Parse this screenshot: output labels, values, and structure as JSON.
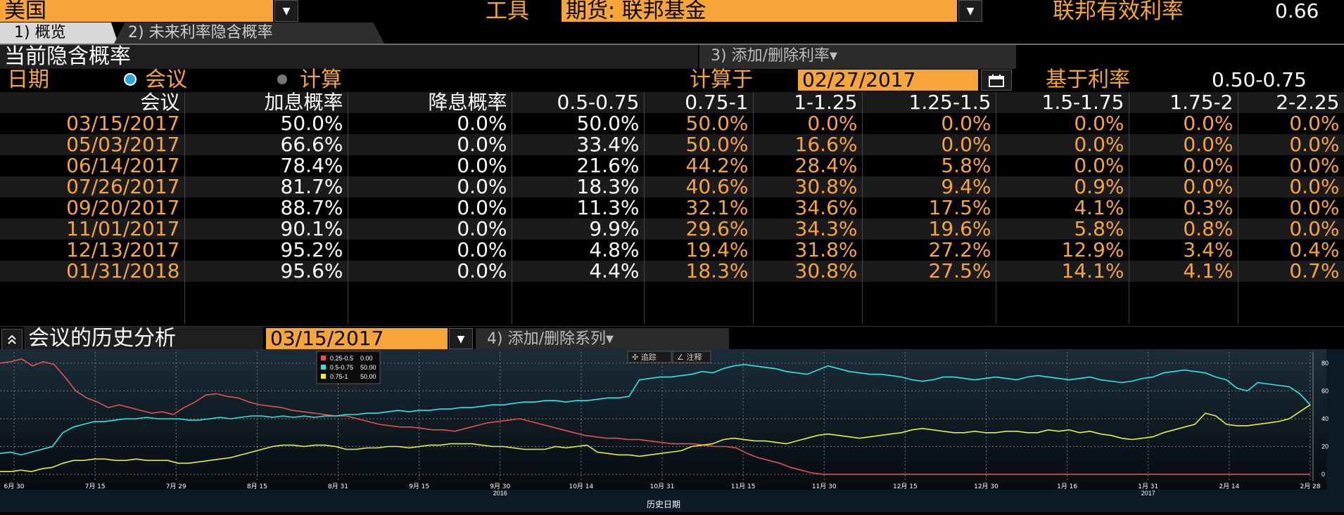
{
  "header": {
    "country_value": "美国",
    "tool_label": "工具",
    "tool_value": "期货: 联邦基金",
    "effective_rate_label": "联邦有效利率",
    "effective_rate_value": "0.66",
    "dropdown_glyph": "▼"
  },
  "tabs": [
    {
      "label": "1) 概览",
      "active": true
    },
    {
      "label": "2) 未来利率隐含概率",
      "active": false
    }
  ],
  "section": {
    "title": "当前隐含概率",
    "add_remove_rate": "3) 添加/删除利率▾",
    "date_label": "日期",
    "option_meeting": "会议",
    "option_calc": "计算",
    "calc_on_label": "计算于",
    "calc_date": "02/27/2017",
    "base_rate_label": "基于利率",
    "base_rate_value": "0.50-0.75"
  },
  "table": {
    "headers": [
      "会议",
      "加息概率",
      "降息概率",
      "0.5-0.75",
      "0.75-1",
      "1-1.25",
      "1.25-1.5",
      "1.5-1.75",
      "1.75-2",
      "2-2.25"
    ],
    "rows": [
      [
        "03/15/2017",
        "50.0%",
        "0.0%",
        "50.0%",
        "50.0%",
        "0.0%",
        "0.0%",
        "0.0%",
        "0.0%",
        "0.0%"
      ],
      [
        "05/03/2017",
        "66.6%",
        "0.0%",
        "33.4%",
        "50.0%",
        "16.6%",
        "0.0%",
        "0.0%",
        "0.0%",
        "0.0%"
      ],
      [
        "06/14/2017",
        "78.4%",
        "0.0%",
        "21.6%",
        "44.2%",
        "28.4%",
        "5.8%",
        "0.0%",
        "0.0%",
        "0.0%"
      ],
      [
        "07/26/2017",
        "81.7%",
        "0.0%",
        "18.3%",
        "40.6%",
        "30.8%",
        "9.4%",
        "0.9%",
        "0.0%",
        "0.0%"
      ],
      [
        "09/20/2017",
        "88.7%",
        "0.0%",
        "11.3%",
        "32.1%",
        "34.6%",
        "17.5%",
        "4.1%",
        "0.3%",
        "0.0%"
      ],
      [
        "11/01/2017",
        "90.1%",
        "0.0%",
        "9.9%",
        "29.6%",
        "34.3%",
        "19.6%",
        "5.8%",
        "0.8%",
        "0.0%"
      ],
      [
        "12/13/2017",
        "95.2%",
        "0.0%",
        "4.8%",
        "19.4%",
        "31.8%",
        "27.2%",
        "12.9%",
        "3.4%",
        "0.4%"
      ],
      [
        "01/31/2018",
        "95.6%",
        "0.0%",
        "4.4%",
        "18.3%",
        "30.8%",
        "27.5%",
        "14.1%",
        "4.1%",
        "0.7%"
      ]
    ]
  },
  "history": {
    "collapse_glyph": "≈",
    "title": "会议的历史分析",
    "meeting_date": "03/15/2017",
    "add_remove_series": "4) 添加/删除系列▾",
    "track_btn": "✣ 追踪",
    "note_btn": "∠ 注释",
    "xlabel": "历史日期"
  },
  "chart_data": {
    "type": "line",
    "xlabel": "历史日期",
    "x_ticks": [
      "6月 30",
      "7月 15",
      "7月 29",
      "8月 15",
      "8月 31",
      "9月 15",
      "9月 30",
      "10月 14",
      "10月 31",
      "11月 15",
      "11月 30",
      "12月 15",
      "12月 30",
      "1月 16",
      "1月 31",
      "2月 14",
      "2月 28"
    ],
    "year_labels": [
      {
        "after_tick": "9月 30",
        "text": "2016"
      },
      {
        "after_tick": "1月 31",
        "text": "2017"
      }
    ],
    "y_ticks": [
      0,
      20,
      40,
      60,
      80
    ],
    "ylim": [
      -5,
      88
    ],
    "legend": [
      {
        "name": "0.25-0.5",
        "value": "0.00",
        "color": "#e05252"
      },
      {
        "name": "0.5-0.75",
        "value": "50.00",
        "color": "#2fe6e6"
      },
      {
        "name": "0.75-1",
        "value": "50.00",
        "color": "#e6f03a"
      }
    ],
    "series": [
      {
        "name": "0.25-0.5",
        "color": "#e05252",
        "values": [
          80,
          81,
          83,
          78,
          81,
          79,
          70,
          60,
          55,
          52,
          48,
          50,
          48,
          46,
          44,
          45,
          43,
          48,
          52,
          57,
          58,
          56,
          55,
          52,
          50,
          49,
          48,
          46,
          45,
          44,
          43,
          42,
          42,
          40,
          38,
          36,
          35,
          34,
          34,
          33,
          32,
          32,
          31,
          33,
          35,
          37,
          38,
          39,
          40,
          38,
          36,
          34,
          32,
          30,
          28,
          27,
          26,
          26,
          25,
          25,
          24,
          23,
          22,
          22,
          22,
          21,
          20,
          20,
          19,
          15,
          12,
          10,
          8,
          5,
          3,
          1,
          0,
          0,
          0,
          0,
          0,
          0,
          0,
          0,
          0,
          0,
          0,
          0,
          0,
          0,
          0,
          0,
          0,
          0,
          0,
          0,
          0,
          0,
          0,
          0,
          0,
          0,
          0,
          0,
          0,
          0,
          0,
          0,
          0,
          0,
          0,
          0,
          0,
          0,
          0,
          0,
          0,
          0,
          0,
          0,
          0,
          0
        ]
      },
      {
        "name": "0.5-0.75",
        "color": "#2fe6e6",
        "values": [
          15,
          16,
          14,
          16,
          18,
          20,
          30,
          34,
          36,
          38,
          38,
          39,
          40,
          40,
          41,
          40,
          40,
          40,
          39,
          39,
          40,
          41,
          40,
          41,
          42,
          42,
          41,
          42,
          41,
          42,
          41,
          42,
          42,
          43,
          43,
          44,
          44,
          45,
          46,
          45,
          46,
          46,
          47,
          47,
          48,
          48,
          49,
          50,
          50,
          51,
          52,
          52,
          53,
          53,
          52,
          53,
          53,
          54,
          55,
          55,
          56,
          68,
          69,
          70,
          70,
          71,
          72,
          74,
          73,
          76,
          78,
          79,
          78,
          77,
          76,
          74,
          73,
          72,
          75,
          78,
          76,
          74,
          73,
          72,
          72,
          71,
          70,
          68,
          67,
          68,
          70,
          70,
          69,
          68,
          69,
          70,
          69,
          68,
          70,
          71,
          70,
          69,
          68,
          69,
          70,
          68,
          67,
          66,
          67,
          69,
          70,
          73,
          74,
          75,
          74,
          73,
          70,
          68,
          62,
          60,
          66,
          65,
          64,
          63,
          58,
          50
        ]
      },
      {
        "name": "0.75-1",
        "color": "#e6f03a",
        "values": [
          2,
          2,
          3,
          2,
          4,
          5,
          8,
          10,
          10,
          11,
          11,
          10,
          10,
          11,
          10,
          10,
          10,
          8,
          8,
          9,
          10,
          11,
          12,
          14,
          16,
          18,
          20,
          21,
          21,
          20,
          21,
          21,
          20,
          18,
          18,
          19,
          19,
          20,
          20,
          19,
          20,
          21,
          21,
          22,
          22,
          22,
          21,
          20,
          20,
          19,
          18,
          18,
          18,
          20,
          19,
          20,
          21,
          16,
          15,
          14,
          14,
          13,
          14,
          15,
          16,
          17,
          20,
          21,
          22,
          25,
          26,
          25,
          24,
          24,
          23,
          22,
          24,
          26,
          28,
          29,
          28,
          27,
          26,
          27,
          28,
          29,
          30,
          32,
          33,
          32,
          31,
          30,
          30,
          31,
          30,
          30,
          31,
          31,
          30,
          30,
          32,
          31,
          32,
          30,
          31,
          29,
          28,
          26,
          25,
          26,
          27,
          30,
          32,
          34,
          36,
          44,
          42,
          36,
          35,
          35,
          36,
          37,
          38,
          40,
          45,
          50
        ]
      }
    ]
  }
}
